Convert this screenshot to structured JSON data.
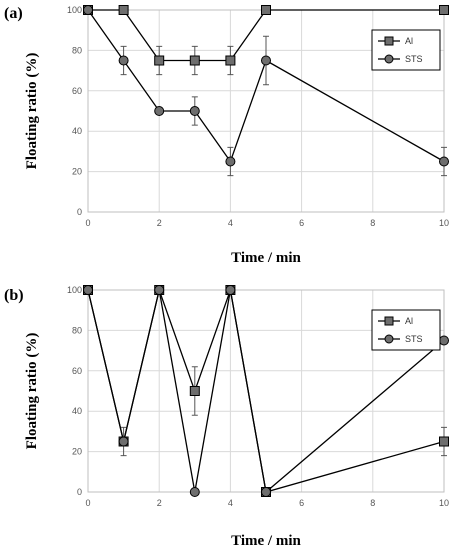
{
  "chart_data": [
    {
      "type": "line",
      "panel_label": "(a)",
      "xlabel": "Time / min",
      "ylabel": "Floating ratio (%)",
      "xlim": [
        0,
        10
      ],
      "ylim": [
        0,
        100
      ],
      "xticks": [
        0,
        2,
        4,
        6,
        8,
        10
      ],
      "yticks": [
        0,
        20,
        40,
        60,
        80,
        100
      ],
      "grid": true,
      "legend_position": "top-right",
      "series": [
        {
          "name": "Al",
          "marker": "square",
          "x": [
            0,
            1,
            2,
            3,
            4,
            5,
            10
          ],
          "y": [
            100,
            100,
            75,
            75,
            75,
            100,
            100
          ],
          "error": [
            0,
            0,
            7,
            7,
            7,
            0,
            0
          ]
        },
        {
          "name": "STS",
          "marker": "circle",
          "x": [
            0,
            1,
            2,
            3,
            4,
            5,
            10
          ],
          "y": [
            100,
            75,
            50,
            50,
            25,
            75,
            25
          ],
          "error": [
            0,
            7,
            0,
            7,
            7,
            12,
            7
          ]
        }
      ]
    },
    {
      "type": "line",
      "panel_label": "(b)",
      "xlabel": "Time / min",
      "ylabel": "Floating ratio (%)",
      "xlim": [
        0,
        10
      ],
      "ylim": [
        0,
        100
      ],
      "xticks": [
        0,
        2,
        4,
        6,
        8,
        10
      ],
      "yticks": [
        0,
        20,
        40,
        60,
        80,
        100
      ],
      "grid": true,
      "legend_position": "top-right",
      "series": [
        {
          "name": "Al",
          "marker": "square",
          "x": [
            0,
            1,
            2,
            3,
            4,
            5,
            10
          ],
          "y": [
            100,
            25,
            100,
            50,
            100,
            0,
            25
          ],
          "error": [
            0,
            7,
            0,
            12,
            0,
            0,
            7
          ]
        },
        {
          "name": "STS",
          "marker": "circle",
          "x": [
            0,
            1,
            2,
            3,
            4,
            5,
            10
          ],
          "y": [
            100,
            25,
            100,
            0,
            100,
            0,
            75
          ],
          "error": [
            0,
            0,
            0,
            0,
            0,
            0,
            0
          ]
        }
      ]
    }
  ]
}
